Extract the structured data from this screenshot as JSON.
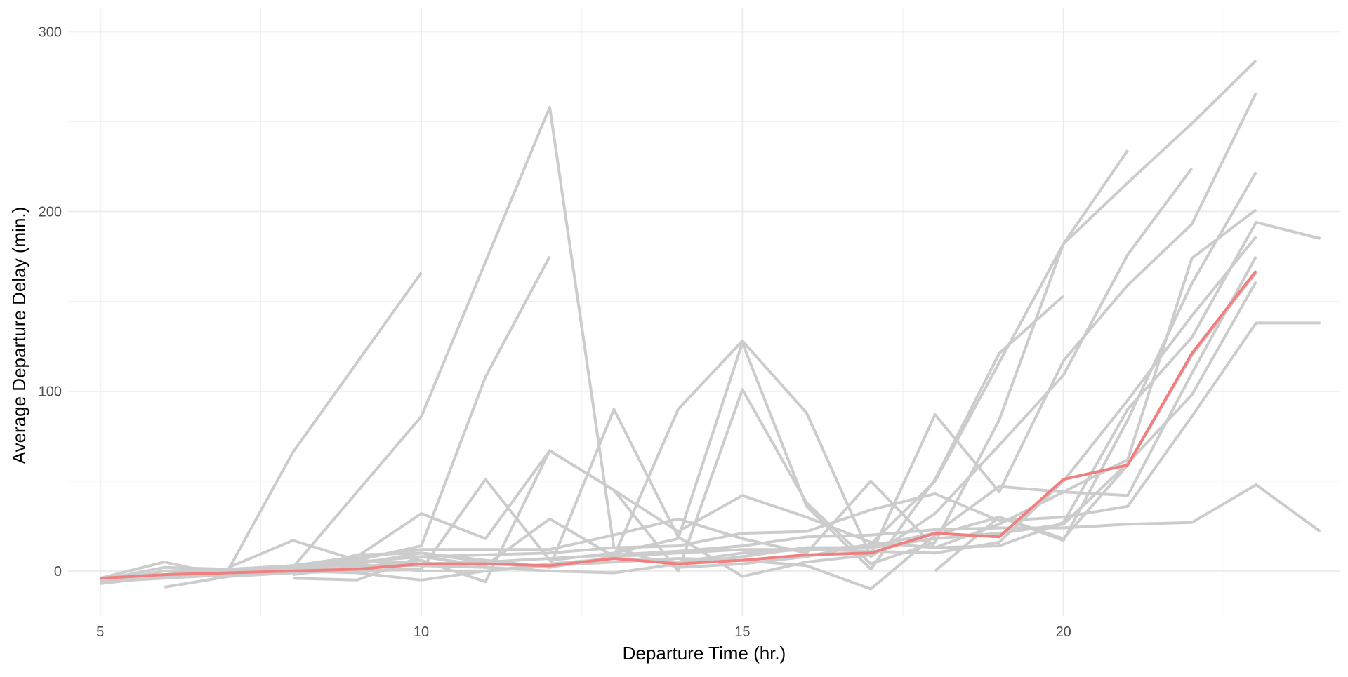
{
  "chart_data": {
    "type": "line",
    "title": "",
    "xlabel": "Departure Time (hr.)",
    "ylabel": "Average Departure Delay (min.)",
    "xlim": [
      4.5,
      24.3
    ],
    "ylim": [
      -25,
      313
    ],
    "x_ticks": [
      5,
      10,
      15,
      20
    ],
    "y_ticks": [
      0,
      100,
      200,
      300
    ],
    "grid": true,
    "legend": "none",
    "colors": {
      "background_line": "#cccccc",
      "highlight_line": "#f08080",
      "grid_major": "#ebebeb",
      "grid_minor": "#f2f2f2"
    },
    "series": [
      {
        "highlight": false,
        "points": [
          [
            5,
            -5
          ],
          [
            6,
            2
          ],
          [
            7,
            1
          ],
          [
            8,
            66
          ],
          [
            9,
            116
          ],
          [
            10,
            166
          ]
        ]
      },
      {
        "highlight": false,
        "points": [
          [
            5,
            -6
          ],
          [
            6,
            0
          ],
          [
            7,
            -1
          ],
          [
            8,
            2
          ],
          [
            9,
            44
          ],
          [
            10,
            86
          ],
          [
            11,
            172
          ],
          [
            12,
            258
          ],
          [
            13,
            13
          ],
          [
            14,
            2
          ],
          [
            15,
            4
          ],
          [
            16,
            8
          ],
          [
            17,
            15
          ],
          [
            18,
            50
          ],
          [
            19,
            116
          ],
          [
            20,
            182
          ],
          [
            21,
            234
          ]
        ]
      },
      {
        "highlight": false,
        "points": [
          [
            7,
            2
          ],
          [
            8,
            17
          ],
          [
            9,
            6
          ],
          [
            10,
            14
          ],
          [
            11,
            108
          ],
          [
            12,
            175
          ]
        ]
      },
      {
        "highlight": false,
        "points": [
          [
            5,
            -4
          ],
          [
            6,
            5
          ],
          [
            7,
            -3
          ],
          [
            8,
            -1
          ],
          [
            9,
            0
          ],
          [
            10,
            1
          ],
          [
            11,
            51
          ],
          [
            12,
            6
          ],
          [
            13,
            10
          ],
          [
            14,
            18
          ],
          [
            15,
            127
          ],
          [
            16,
            36
          ],
          [
            17,
            1
          ],
          [
            18,
            51
          ],
          [
            19,
            121
          ],
          [
            20,
            153
          ]
        ]
      },
      {
        "highlight": false,
        "points": [
          [
            8,
            3
          ],
          [
            9,
            8
          ],
          [
            10,
            32
          ],
          [
            11,
            18
          ],
          [
            12,
            67
          ],
          [
            13,
            45
          ],
          [
            14,
            0
          ],
          [
            15,
            101
          ],
          [
            16,
            38
          ],
          [
            17,
            4
          ],
          [
            18,
            16
          ],
          [
            19,
            84
          ],
          [
            20,
            182
          ],
          [
            21,
            216
          ],
          [
            22,
            249
          ],
          [
            23,
            284
          ]
        ]
      },
      {
        "highlight": false,
        "points": [
          [
            8,
            -4
          ],
          [
            9,
            -5
          ],
          [
            10,
            8
          ],
          [
            11,
            3
          ],
          [
            12,
            29
          ],
          [
            13,
            8
          ],
          [
            14,
            90
          ],
          [
            15,
            128
          ],
          [
            16,
            88
          ],
          [
            17,
            8
          ],
          [
            18,
            32
          ],
          [
            19,
            70
          ],
          [
            20,
            109
          ],
          [
            21,
            176
          ],
          [
            22,
            224
          ]
        ]
      },
      {
        "highlight": false,
        "points": [
          [
            5,
            -6
          ],
          [
            6,
            -4
          ],
          [
            7,
            -2
          ],
          [
            8,
            1
          ],
          [
            9,
            4
          ],
          [
            10,
            10
          ],
          [
            11,
            6
          ],
          [
            12,
            2
          ],
          [
            13,
            90
          ],
          [
            14,
            19
          ],
          [
            15,
            -3
          ],
          [
            16,
            5
          ],
          [
            17,
            9
          ],
          [
            18,
            87
          ],
          [
            19,
            44
          ],
          [
            20,
            117
          ],
          [
            21,
            159
          ],
          [
            22,
            193
          ],
          [
            23,
            266
          ]
        ]
      },
      {
        "highlight": false,
        "points": [
          [
            5,
            -7
          ],
          [
            6,
            -3
          ],
          [
            7,
            0
          ],
          [
            8,
            3
          ],
          [
            9,
            7
          ],
          [
            10,
            12
          ],
          [
            11,
            12
          ],
          [
            12,
            12
          ],
          [
            13,
            20
          ],
          [
            14,
            29
          ],
          [
            15,
            18
          ],
          [
            16,
            10
          ],
          [
            17,
            50
          ],
          [
            18,
            13
          ],
          [
            19,
            26
          ],
          [
            20,
            44
          ],
          [
            21,
            62
          ],
          [
            22,
            174
          ],
          [
            23,
            201
          ]
        ]
      },
      {
        "highlight": false,
        "points": [
          [
            5,
            -6
          ],
          [
            6,
            -2
          ],
          [
            7,
            -1
          ],
          [
            8,
            0
          ],
          [
            9,
            2
          ],
          [
            10,
            6
          ],
          [
            11,
            -6
          ],
          [
            12,
            67
          ],
          [
            13,
            45
          ],
          [
            14,
            22
          ],
          [
            15,
            42
          ],
          [
            16,
            30
          ],
          [
            17,
            16
          ],
          [
            18,
            13
          ],
          [
            19,
            14
          ],
          [
            20,
            27
          ],
          [
            21,
            90
          ],
          [
            22,
            130
          ],
          [
            23,
            194
          ],
          [
            24,
            185
          ]
        ]
      },
      {
        "highlight": false,
        "points": [
          [
            5,
            -5
          ],
          [
            6,
            -2
          ],
          [
            7,
            1
          ],
          [
            8,
            3
          ],
          [
            9,
            5
          ],
          [
            10,
            8
          ],
          [
            11,
            9
          ],
          [
            12,
            10
          ],
          [
            13,
            13
          ],
          [
            14,
            14
          ],
          [
            15,
            21
          ],
          [
            16,
            22
          ],
          [
            17,
            34
          ],
          [
            18,
            43
          ],
          [
            19,
            28
          ],
          [
            20,
            30
          ],
          [
            21,
            36
          ],
          [
            22,
            86
          ],
          [
            23,
            138
          ],
          [
            24,
            138
          ]
        ]
      },
      {
        "highlight": false,
        "points": [
          [
            6,
            -9
          ],
          [
            7,
            -3
          ],
          [
            8,
            2
          ],
          [
            9,
            6
          ],
          [
            10,
            4
          ],
          [
            11,
            5
          ],
          [
            12,
            7
          ],
          [
            13,
            9
          ],
          [
            14,
            11
          ],
          [
            15,
            14
          ],
          [
            16,
            19
          ],
          [
            17,
            20
          ],
          [
            18,
            23
          ],
          [
            19,
            24
          ],
          [
            20,
            24
          ],
          [
            21,
            26
          ],
          [
            22,
            27
          ],
          [
            23,
            48
          ],
          [
            24,
            22
          ]
        ]
      },
      {
        "highlight": false,
        "points": [
          [
            5,
            -5
          ],
          [
            6,
            -2
          ],
          [
            7,
            0
          ],
          [
            8,
            0
          ],
          [
            9,
            -1
          ],
          [
            10,
            -5
          ],
          [
            11,
            0
          ],
          [
            12,
            4
          ],
          [
            13,
            7
          ],
          [
            14,
            5
          ],
          [
            15,
            10
          ],
          [
            16,
            12
          ],
          [
            17,
            14
          ],
          [
            18,
            21
          ],
          [
            19,
            47
          ],
          [
            20,
            44
          ],
          [
            21,
            42
          ],
          [
            22,
            110
          ],
          [
            23,
            175
          ]
        ]
      },
      {
        "highlight": false,
        "points": [
          [
            7,
            -3
          ],
          [
            8,
            2
          ],
          [
            9,
            4
          ],
          [
            10,
            0
          ],
          [
            11,
            0
          ],
          [
            12,
            3
          ],
          [
            13,
            5
          ],
          [
            14,
            7
          ],
          [
            15,
            6
          ],
          [
            16,
            3
          ],
          [
            17,
            -10
          ],
          [
            18,
            20
          ],
          [
            19,
            30
          ],
          [
            20,
            17
          ],
          [
            21,
            84
          ],
          [
            22,
            160
          ],
          [
            23,
            222
          ]
        ]
      },
      {
        "highlight": false,
        "points": [
          [
            6,
            0
          ],
          [
            7,
            1
          ],
          [
            8,
            0
          ],
          [
            9,
            9
          ],
          [
            10,
            10
          ],
          [
            11,
            5
          ],
          [
            12,
            2
          ],
          [
            13,
            8
          ],
          [
            14,
            10
          ],
          [
            15,
            12
          ],
          [
            16,
            12
          ],
          [
            17,
            11
          ],
          [
            18,
            10
          ],
          [
            19,
            16
          ],
          [
            20,
            50
          ],
          [
            21,
            95
          ],
          [
            22,
            142
          ],
          [
            23,
            186
          ]
        ]
      },
      {
        "highlight": false,
        "points": [
          [
            8,
            -2
          ],
          [
            9,
            3
          ],
          [
            10,
            3
          ],
          [
            11,
            2
          ],
          [
            12,
            0
          ],
          [
            13,
            -1
          ],
          [
            14,
            4
          ],
          [
            15,
            8
          ],
          [
            16,
            13
          ],
          [
            17,
            13
          ],
          [
            18,
            18
          ],
          [
            19,
            21
          ],
          [
            20,
            26
          ],
          [
            21,
            60
          ],
          [
            22,
            98
          ],
          [
            23,
            161
          ]
        ]
      },
      {
        "highlight": false,
        "points": [
          [
            18,
            0
          ],
          [
            19,
            30
          ],
          [
            20,
            18
          ],
          [
            21,
            59
          ],
          [
            22,
            120
          ],
          [
            23,
            166
          ]
        ]
      },
      {
        "highlight": true,
        "points": [
          [
            5,
            -4
          ],
          [
            6,
            -2
          ],
          [
            7,
            -1
          ],
          [
            8,
            0
          ],
          [
            9,
            1
          ],
          [
            10,
            4
          ],
          [
            11,
            4
          ],
          [
            12,
            3
          ],
          [
            13,
            7
          ],
          [
            14,
            4
          ],
          [
            15,
            6
          ],
          [
            16,
            9
          ],
          [
            17,
            10
          ],
          [
            18,
            21
          ],
          [
            19,
            19
          ],
          [
            20,
            51
          ],
          [
            21,
            59
          ],
          [
            22,
            121
          ],
          [
            23,
            167
          ]
        ]
      }
    ]
  }
}
